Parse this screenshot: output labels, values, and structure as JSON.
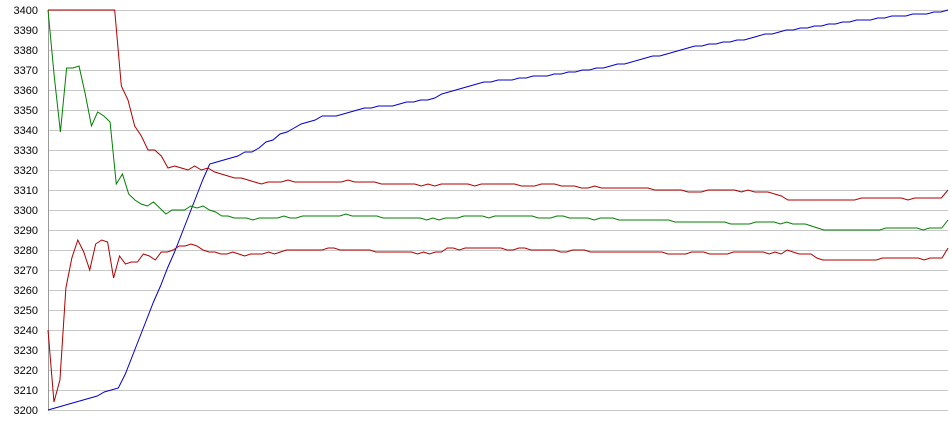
{
  "chart_data": {
    "type": "line",
    "title": "",
    "xlabel": "",
    "ylabel": "",
    "ylim": [
      3200,
      3400
    ],
    "yticks": [
      3200,
      3210,
      3220,
      3230,
      3240,
      3250,
      3260,
      3270,
      3280,
      3290,
      3300,
      3310,
      3320,
      3330,
      3340,
      3350,
      3360,
      3370,
      3380,
      3390,
      3400
    ],
    "grid": true,
    "legend": "none",
    "series": [
      {
        "color": "#0000cc",
        "values": [
          3200,
          3201,
          3202,
          3203,
          3204,
          3205,
          3206,
          3207,
          3209,
          3210,
          3211,
          3218,
          3227,
          3236,
          3245,
          3254,
          3262,
          3271,
          3279,
          3288,
          3297,
          3306,
          3315,
          3323,
          3324,
          3325,
          3326,
          3327,
          3329,
          3329,
          3331,
          3334,
          3335,
          3338,
          3339,
          3341,
          3343,
          3344,
          3345,
          3347,
          3347,
          3347,
          3348,
          3349,
          3350,
          3351,
          3351,
          3352,
          3352,
          3352,
          3353,
          3354,
          3354,
          3355,
          3355,
          3356,
          3358,
          3359,
          3360,
          3361,
          3362,
          3363,
          3364,
          3364,
          3365,
          3365,
          3365,
          3366,
          3366,
          3367,
          3367,
          3367,
          3368,
          3368,
          3369,
          3369,
          3370,
          3370,
          3371,
          3371,
          3372,
          3373,
          3373,
          3374,
          3375,
          3376,
          3377,
          3377,
          3378,
          3379,
          3380,
          3381,
          3382,
          3382,
          3383,
          3383,
          3384,
          3384,
          3385,
          3385,
          3386,
          3387,
          3388,
          3388,
          3389,
          3390,
          3390,
          3391,
          3391,
          3392,
          3392,
          3393,
          3393,
          3394,
          3394,
          3395,
          3395,
          3395,
          3396,
          3396,
          3397,
          3397,
          3397,
          3398,
          3398,
          3398,
          3399,
          3399,
          3400
        ]
      },
      {
        "color": "#008000",
        "values": [
          3400,
          3367,
          3339,
          3371,
          3371,
          3372,
          3358,
          3342,
          3349,
          3347,
          3344,
          3313,
          3318,
          3308,
          3305,
          3303,
          3302,
          3304,
          3301,
          3298,
          3300,
          3300,
          3300,
          3302,
          3301,
          3302,
          3300,
          3299,
          3297,
          3297,
          3296,
          3296,
          3296,
          3295,
          3296,
          3296,
          3296,
          3296,
          3297,
          3296,
          3296,
          3297,
          3297,
          3297,
          3297,
          3297,
          3297,
          3297,
          3298,
          3297,
          3297,
          3297,
          3297,
          3297,
          3296,
          3296,
          3296,
          3296,
          3296,
          3296,
          3296,
          3295,
          3296,
          3295,
          3296,
          3296,
          3296,
          3297,
          3297,
          3297,
          3297,
          3296,
          3297,
          3297,
          3297,
          3297,
          3297,
          3297,
          3297,
          3296,
          3296,
          3296,
          3297,
          3297,
          3296,
          3296,
          3296,
          3296,
          3295,
          3296,
          3296,
          3296,
          3295,
          3295,
          3295,
          3295,
          3295,
          3295,
          3295,
          3295,
          3295,
          3294,
          3294,
          3294,
          3294,
          3294,
          3294,
          3294,
          3294,
          3294,
          3293,
          3293,
          3293,
          3293,
          3294,
          3294,
          3294,
          3294,
          3293,
          3294,
          3293,
          3293,
          3293,
          3292,
          3291,
          3290,
          3290,
          3290,
          3290,
          3290,
          3290,
          3290,
          3290,
          3290,
          3290,
          3291,
          3291,
          3291,
          3291,
          3291,
          3291,
          3290,
          3291,
          3291,
          3291,
          3295
        ]
      },
      {
        "color": "#b00000",
        "values": [
          3400,
          3400,
          3400,
          3400,
          3400,
          3400,
          3400,
          3400,
          3400,
          3400,
          3400,
          3362,
          3355,
          3342,
          3337,
          3330,
          3330,
          3327,
          3321,
          3322,
          3321,
          3320,
          3322,
          3320,
          3321,
          3319,
          3318,
          3317,
          3316,
          3316,
          3315,
          3314,
          3313,
          3314,
          3314,
          3314,
          3315,
          3314,
          3314,
          3314,
          3314,
          3314,
          3314,
          3314,
          3314,
          3315,
          3314,
          3314,
          3314,
          3314,
          3313,
          3313,
          3313,
          3313,
          3313,
          3313,
          3312,
          3313,
          3312,
          3313,
          3313,
          3313,
          3313,
          3313,
          3312,
          3313,
          3313,
          3313,
          3313,
          3313,
          3313,
          3312,
          3312,
          3312,
          3313,
          3313,
          3313,
          3312,
          3312,
          3312,
          3311,
          3311,
          3312,
          3311,
          3311,
          3311,
          3311,
          3311,
          3311,
          3311,
          3311,
          3310,
          3310,
          3310,
          3310,
          3310,
          3309,
          3309,
          3309,
          3310,
          3310,
          3310,
          3310,
          3310,
          3309,
          3310,
          3309,
          3309,
          3309,
          3308,
          3307,
          3305,
          3305,
          3305,
          3305,
          3305,
          3305,
          3305,
          3305,
          3305,
          3305,
          3305,
          3306,
          3306,
          3306,
          3306,
          3306,
          3306,
          3306,
          3305,
          3306,
          3306,
          3306,
          3306,
          3306,
          3310
        ]
      },
      {
        "color": "#b00000",
        "values": [
          3240,
          3204,
          3215,
          3261,
          3276,
          3285,
          3279,
          3270,
          3283,
          3285,
          3284,
          3266,
          3277,
          3273,
          3274,
          3274,
          3278,
          3277,
          3275,
          3279,
          3279,
          3280,
          3282,
          3282,
          3283,
          3282,
          3280,
          3279,
          3279,
          3278,
          3278,
          3279,
          3278,
          3277,
          3278,
          3278,
          3278,
          3279,
          3278,
          3279,
          3280,
          3280,
          3280,
          3280,
          3280,
          3280,
          3280,
          3281,
          3281,
          3280,
          3280,
          3280,
          3280,
          3280,
          3280,
          3279,
          3279,
          3279,
          3279,
          3279,
          3279,
          3279,
          3278,
          3279,
          3278,
          3279,
          3279,
          3281,
          3281,
          3280,
          3281,
          3281,
          3281,
          3281,
          3281,
          3281,
          3281,
          3280,
          3280,
          3281,
          3281,
          3280,
          3280,
          3280,
          3280,
          3280,
          3279,
          3279,
          3280,
          3280,
          3280,
          3279,
          3279,
          3279,
          3279,
          3279,
          3279,
          3279,
          3279,
          3279,
          3279,
          3279,
          3279,
          3279,
          3278,
          3278,
          3278,
          3278,
          3279,
          3279,
          3279,
          3278,
          3278,
          3278,
          3278,
          3279,
          3279,
          3279,
          3279,
          3279,
          3279,
          3278,
          3279,
          3278,
          3280,
          3279,
          3278,
          3278,
          3278,
          3276,
          3275,
          3275,
          3275,
          3275,
          3275,
          3275,
          3275,
          3275,
          3275,
          3275,
          3276,
          3276,
          3276,
          3276,
          3276,
          3276,
          3276,
          3275,
          3276,
          3276,
          3276,
          3281
        ]
      }
    ]
  }
}
